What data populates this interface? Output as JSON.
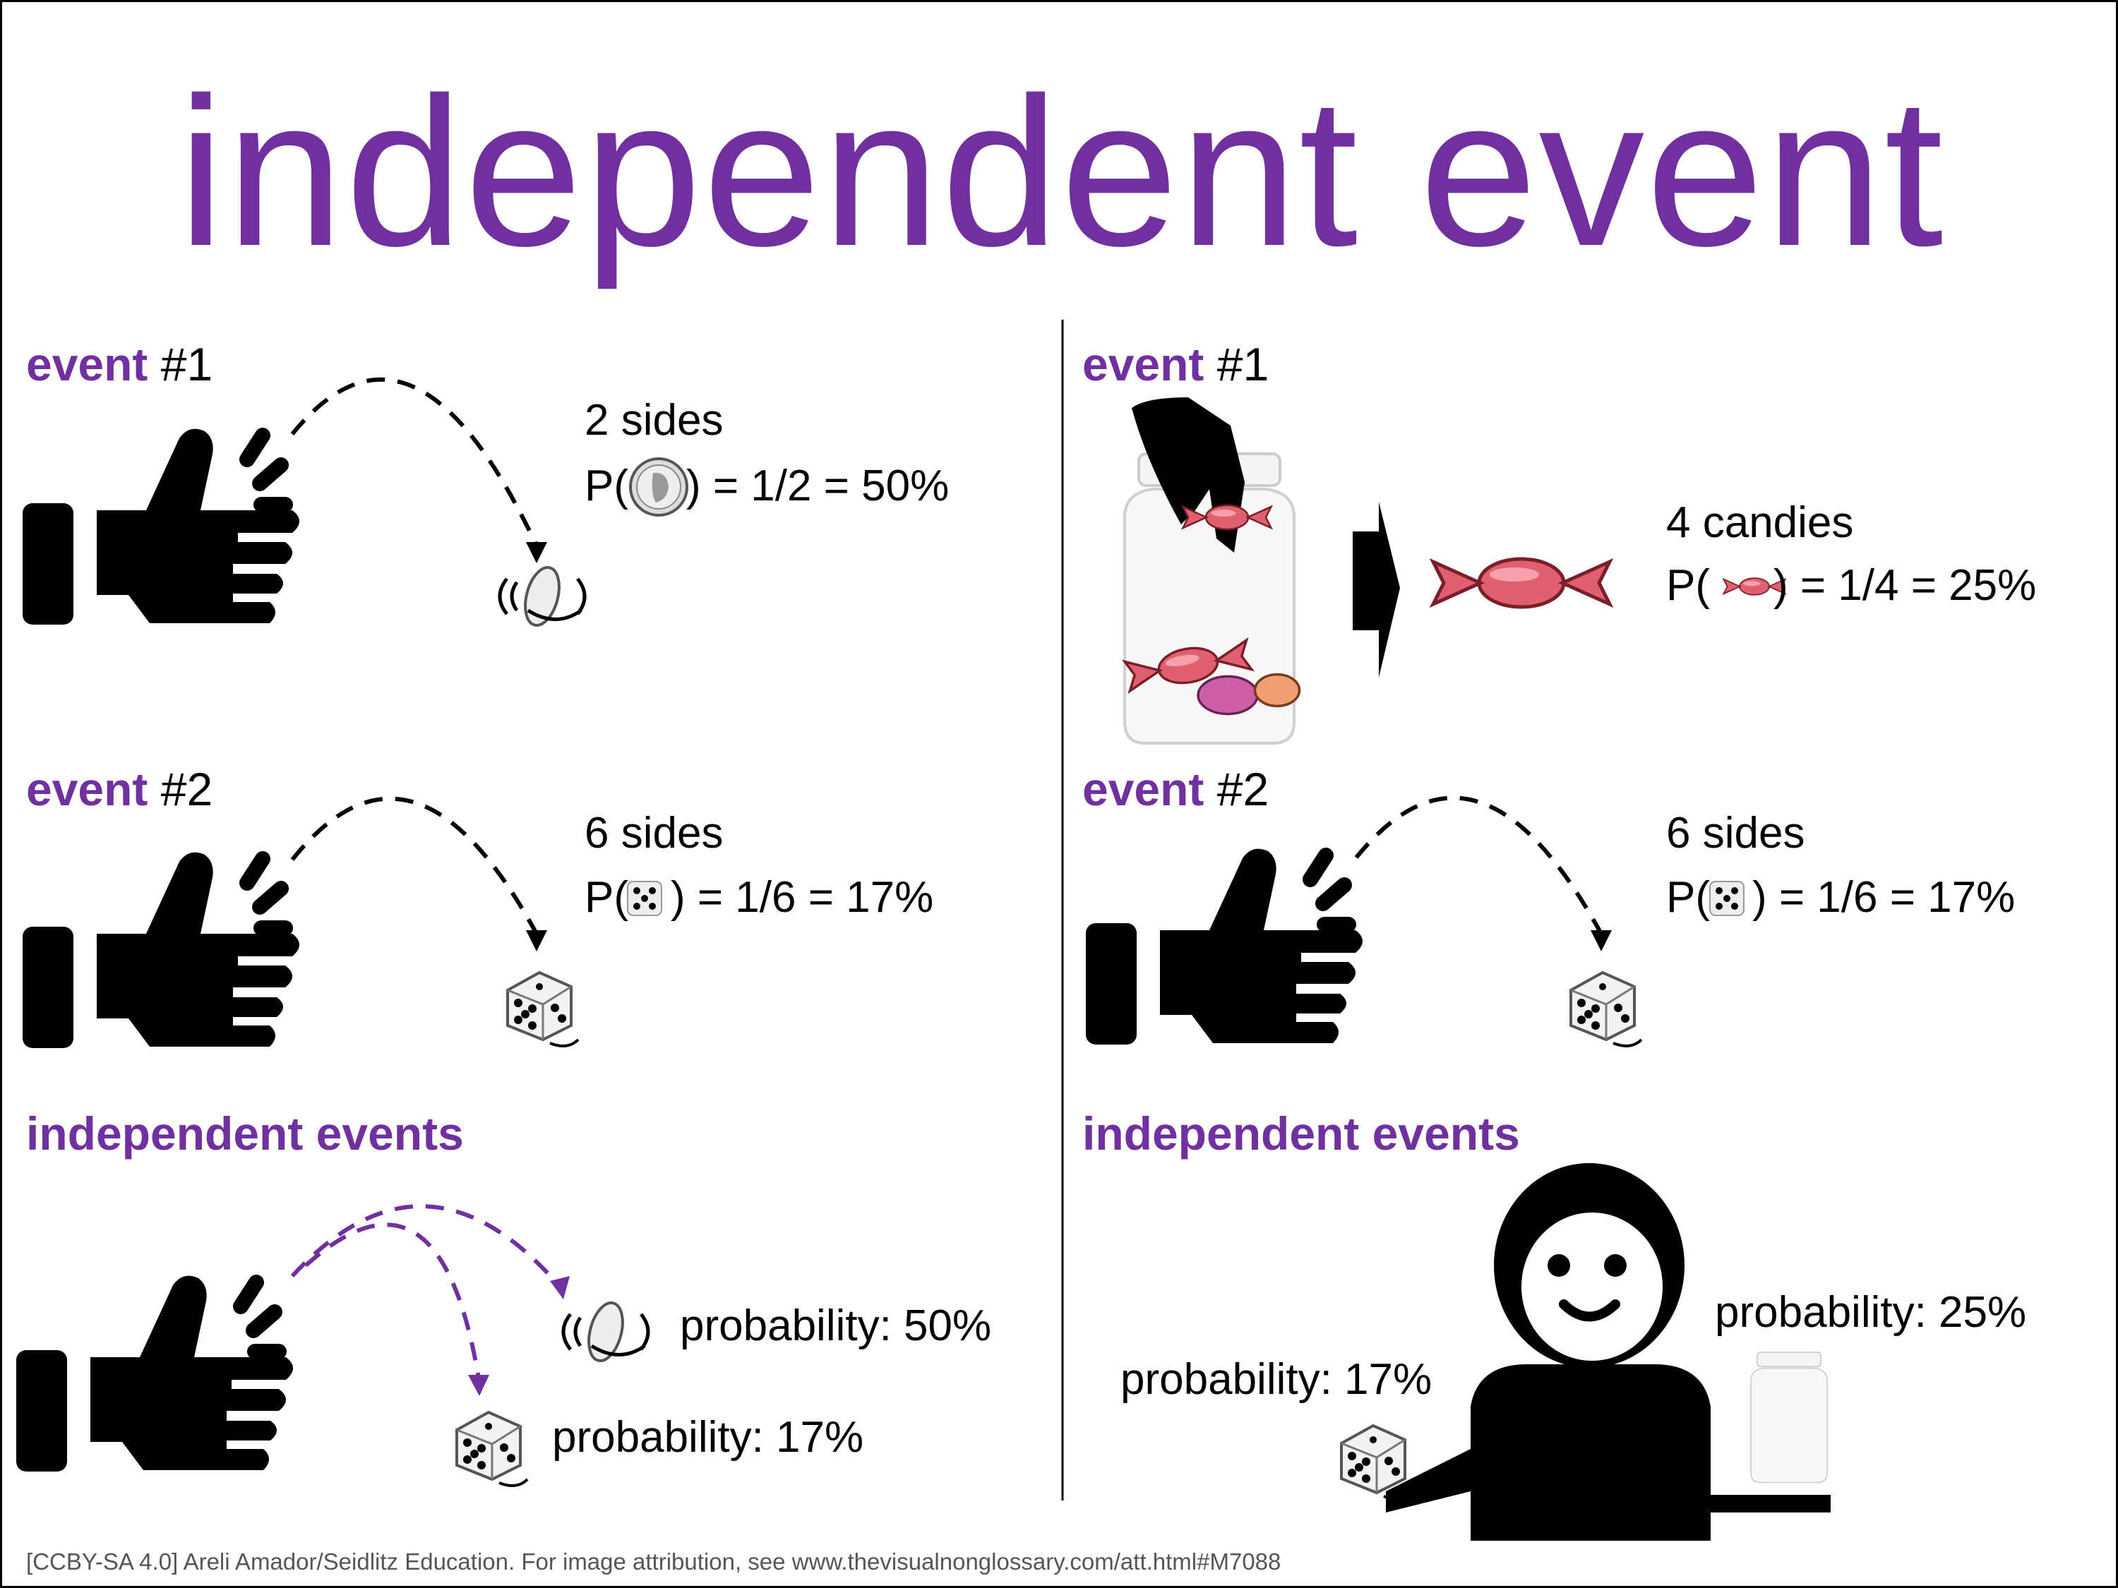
{
  "title": "independent event",
  "colors": {
    "accent": "#7030A0",
    "text": "#000000",
    "footer": "#555555"
  },
  "left": {
    "event1": {
      "label": "event",
      "number": "#1",
      "sides": "2 sides",
      "prob_prefix": "P(",
      "prob_suffix": ") = 1/2 = 50%",
      "icon": "coin-icon"
    },
    "event2": {
      "label": "event",
      "number": "#2",
      "sides": "6 sides",
      "prob_prefix": "P(",
      "prob_suffix": ") = 1/6 = 17%",
      "icon": "dice-icon"
    },
    "combined": {
      "heading": "independent events",
      "coin_prob": "probability: 50%",
      "dice_prob": "probability: 17%"
    }
  },
  "right": {
    "event1": {
      "label": "event",
      "number": "#1",
      "sides": "4 candies",
      "prob_prefix": "P(",
      "prob_suffix": ") = 1/4 = 25%",
      "icon": "candy-icon"
    },
    "event2": {
      "label": "event",
      "number": "#2",
      "sides": "6 sides",
      "prob_prefix": "P(",
      "prob_suffix": ") = 1/6 = 17%",
      "icon": "dice-icon"
    },
    "combined": {
      "heading": "independent events",
      "dice_prob": "probability: 17%",
      "jar_prob": "probability: 25%"
    }
  },
  "footer": "[CCBY-SA 4.0] Areli Amador/Seidlitz Education.  For image attribution, see www.thevisualnonglossary.com/att.html#M7088"
}
